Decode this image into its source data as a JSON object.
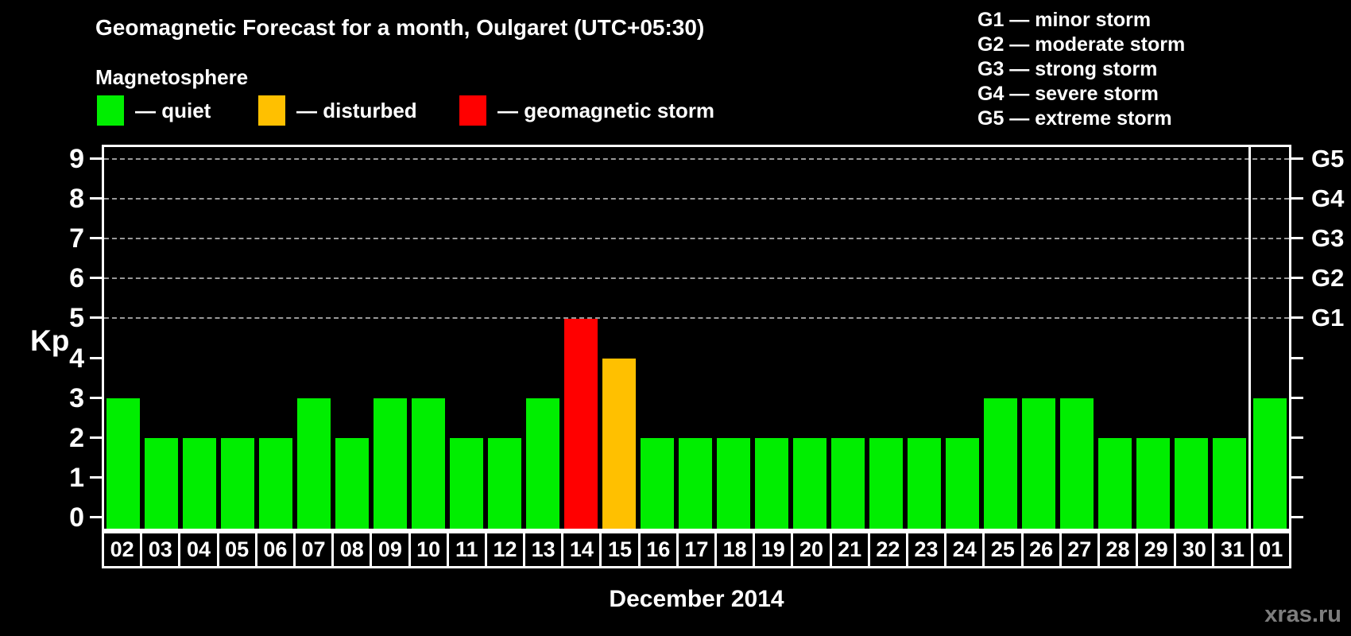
{
  "header": {
    "title": "Geomagnetic Forecast for a month, Oulgaret (UTC+05:30)"
  },
  "legend": {
    "title": "Magnetosphere",
    "items": [
      {
        "name": "quiet",
        "label": "— quiet",
        "color": "#00ee00"
      },
      {
        "name": "disturbed",
        "label": "— disturbed",
        "color": "#ffc000"
      },
      {
        "name": "storm",
        "label": "— geomagnetic storm",
        "color": "#ff0000"
      }
    ]
  },
  "g_scale_legend": {
    "items": [
      {
        "label": "G1 — minor storm"
      },
      {
        "label": "G2 — moderate storm"
      },
      {
        "label": "G3 — strong storm"
      },
      {
        "label": "G4 — severe storm"
      },
      {
        "label": "G5 — extreme storm"
      }
    ]
  },
  "chart_data": {
    "type": "bar",
    "title": "Geomagnetic Forecast for a month, Oulgaret (UTC+05:30)",
    "xlabel": "December 2014",
    "ylabel": "Kp",
    "ylim": [
      0,
      9
    ],
    "yticks": [
      0,
      1,
      2,
      3,
      4,
      5,
      6,
      7,
      8,
      9
    ],
    "grid_levels": [
      5,
      6,
      7,
      8,
      9
    ],
    "grid_style": "dashed",
    "legend_position": "top",
    "g_labels": [
      {
        "kp": 5,
        "label": "G1"
      },
      {
        "kp": 6,
        "label": "G2"
      },
      {
        "kp": 7,
        "label": "G3"
      },
      {
        "kp": 8,
        "label": "G4"
      },
      {
        "kp": 9,
        "label": "G5"
      }
    ],
    "categories": [
      "02",
      "03",
      "04",
      "05",
      "06",
      "07",
      "08",
      "09",
      "10",
      "11",
      "12",
      "13",
      "14",
      "15",
      "16",
      "17",
      "18",
      "19",
      "20",
      "21",
      "22",
      "23",
      "24",
      "25",
      "26",
      "27",
      "28",
      "29",
      "30",
      "31",
      "01"
    ],
    "values": [
      3,
      2,
      2,
      2,
      2,
      3,
      2,
      3,
      3,
      2,
      2,
      3,
      5,
      4,
      2,
      2,
      2,
      2,
      2,
      2,
      2,
      2,
      2,
      3,
      3,
      3,
      2,
      2,
      2,
      2,
      3
    ],
    "statuses": [
      "quiet",
      "quiet",
      "quiet",
      "quiet",
      "quiet",
      "quiet",
      "quiet",
      "quiet",
      "quiet",
      "quiet",
      "quiet",
      "quiet",
      "storm",
      "disturbed",
      "quiet",
      "quiet",
      "quiet",
      "quiet",
      "quiet",
      "quiet",
      "quiet",
      "quiet",
      "quiet",
      "quiet",
      "quiet",
      "quiet",
      "quiet",
      "quiet",
      "quiet",
      "quiet",
      "quiet"
    ],
    "separator_before_day": "01",
    "colors": {
      "quiet": "#00ee00",
      "disturbed": "#ffc000",
      "storm": "#ff0000",
      "axis": "#ffffff",
      "background": "#000000",
      "grid": "#999999"
    }
  },
  "footer": {
    "month_label": "December 2014",
    "watermark": "xras.ru"
  }
}
